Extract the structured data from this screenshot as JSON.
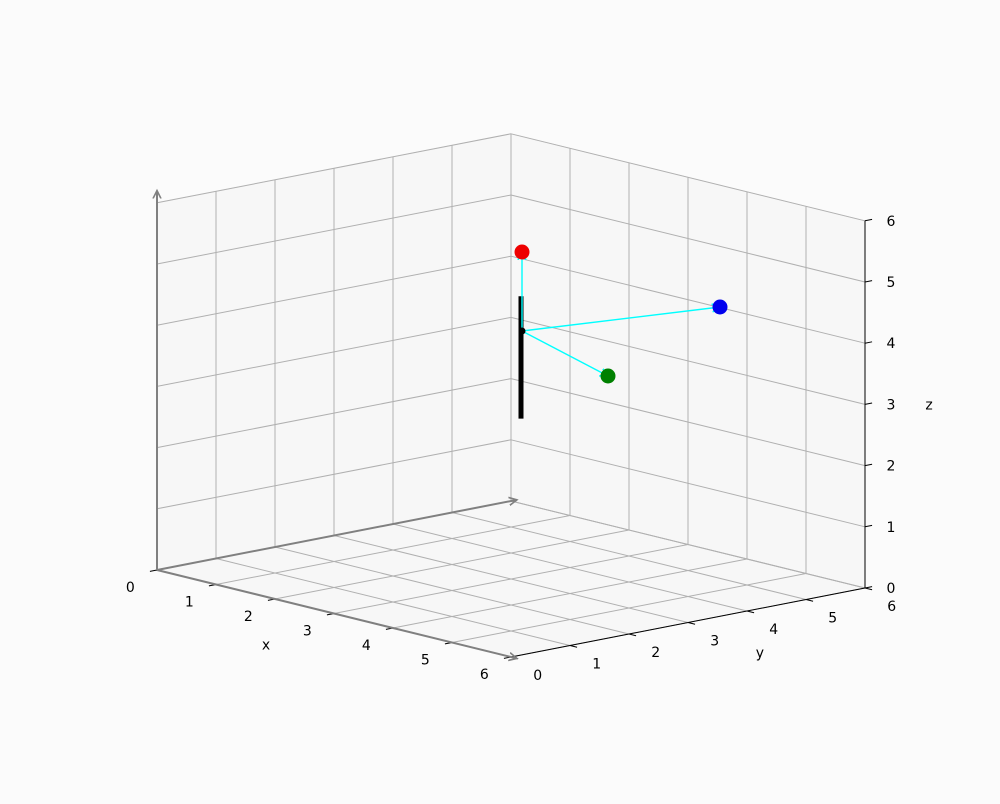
{
  "chart_data": {
    "type": "scatter",
    "projection": "3d",
    "xlabel": "x",
    "ylabel": "y",
    "zlabel": "z",
    "xlim": [
      0,
      6
    ],
    "ylim": [
      0,
      6
    ],
    "zlim": [
      0,
      6
    ],
    "x_ticks": [
      "0",
      "1",
      "2",
      "3",
      "4",
      "5",
      "6"
    ],
    "y_ticks": [
      "0",
      "1",
      "2",
      "3",
      "4",
      "5",
      "6"
    ],
    "z_ticks": [
      "0",
      "1",
      "2",
      "3",
      "4",
      "5",
      "6"
    ],
    "grid": true,
    "colors": {
      "red": "#ee0000",
      "green": "#008000",
      "blue": "#0000ee",
      "connector": "#00ffff",
      "stem": "#000000",
      "axis_arrow": "#808080"
    },
    "points": [
      {
        "name": "red",
        "x": 0,
        "y": 0,
        "z": 5.3,
        "color": "#ee0000"
      },
      {
        "name": "blue",
        "x": 0,
        "y": 3.5,
        "z": 4.4,
        "color": "#0000ee"
      },
      {
        "name": "green",
        "x": 1.5,
        "y": 0.8,
        "z": 4.0,
        "color": "#008000"
      }
    ],
    "hub": {
      "x": 0,
      "y": 0,
      "z": 4.0
    },
    "stem": {
      "x": 0,
      "y": 0,
      "z_from": 2.0,
      "z_to": 4.0
    },
    "axis_arrows": [
      {
        "name": "x-axis-arrow",
        "to": [
          6.1,
          0,
          0
        ]
      },
      {
        "name": "y-axis-arrow",
        "to": [
          0,
          6.1,
          0
        ]
      },
      {
        "name": "z-axis-arrow",
        "to": [
          0,
          0,
          6.2
        ]
      }
    ]
  }
}
